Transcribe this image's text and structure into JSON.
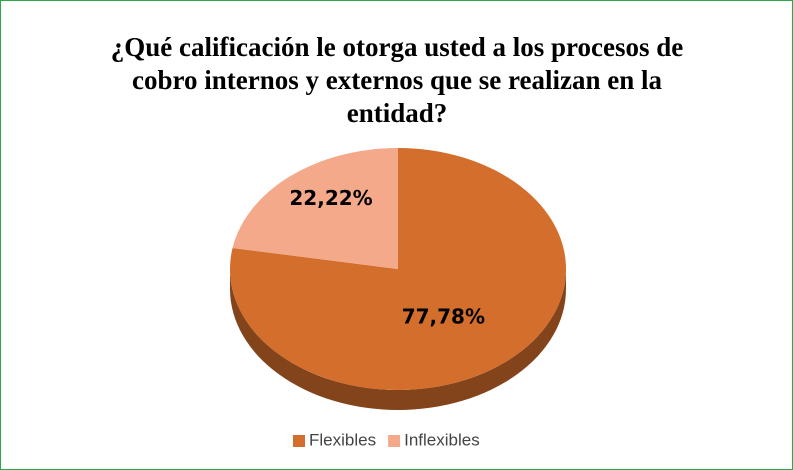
{
  "chart_data": {
    "type": "pie",
    "title": "¿Qué calificación le otorga usted a los procesos de cobro internos y externos que se realizan en la entidad?",
    "categories": [
      "Flexibles",
      "Inflexibles"
    ],
    "values": [
      77.78,
      22.22
    ],
    "value_labels": [
      "77,78%",
      "22,22%"
    ],
    "colors": [
      "#d46e2c",
      "#f4aa8a"
    ],
    "legend": "bottom"
  }
}
